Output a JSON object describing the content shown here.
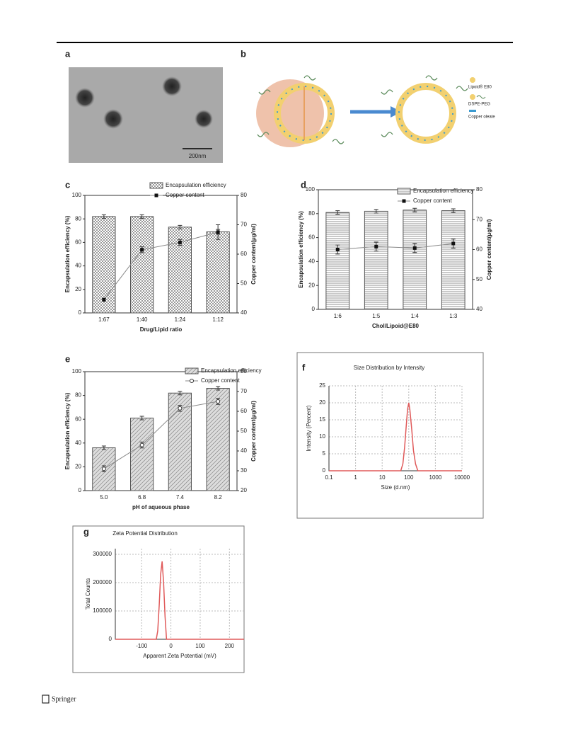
{
  "footer": "Springer",
  "panel_a": {
    "label": "a",
    "scale_bar": "200nm"
  },
  "panel_b": {
    "label": "b",
    "legend": [
      "Lipoid® E80",
      "DSPE-PEG",
      "Copper oleate"
    ]
  },
  "chart_data": [
    {
      "type": "bar",
      "panel": "c",
      "categories": [
        "1:67",
        "1:40",
        "1:24",
        "1:12"
      ],
      "xlabel": "Drug/Lipid ratio",
      "ylabel": "Encapsulation efficiency (%)",
      "y2label": "Copper content(μg/ml)",
      "ylim": [
        0,
        100
      ],
      "yticks": [
        0,
        20,
        40,
        60,
        80,
        100
      ],
      "y2lim": [
        40,
        80
      ],
      "y2ticks": [
        40,
        50,
        60,
        70,
        80
      ],
      "pattern": "checker",
      "marker": "filled-square",
      "series": [
        {
          "name": "Encapsulation efficiency",
          "color": "#555555",
          "values": [
            82,
            82,
            73,
            69
          ],
          "errors": [
            1.5,
            1.5,
            1.5,
            2
          ]
        },
        {
          "name": "Copper content",
          "color": "#888888",
          "axis": "y2",
          "values": [
            44.5,
            61.5,
            64,
            67.5
          ],
          "errors": [
            0.5,
            1,
            1,
            2.5
          ]
        }
      ]
    },
    {
      "type": "bar",
      "panel": "d",
      "categories": [
        "1:6",
        "1:5",
        "1:4",
        "1:3"
      ],
      "xlabel": "Chol/Lipoid@E80",
      "ylabel": "Encapsulation efficiency (%)",
      "y2label": "Copper content(μg/ml)",
      "ylim": [
        0,
        100
      ],
      "yticks": [
        0,
        20,
        40,
        60,
        80,
        100
      ],
      "y2lim": [
        40,
        80
      ],
      "y2ticks": [
        40,
        50,
        60,
        70,
        80
      ],
      "pattern": "horizontal",
      "marker": "filled-square",
      "series": [
        {
          "name": "Encapsulation efficiency",
          "color": "#555555",
          "values": [
            81,
            82,
            83,
            82.5
          ],
          "errors": [
            1.5,
            1.5,
            1.5,
            1.5
          ]
        },
        {
          "name": "Copper content",
          "color": "#888888",
          "axis": "y2",
          "values": [
            60,
            61,
            60.5,
            62
          ],
          "errors": [
            1.5,
            1.5,
            1.5,
            1.5
          ]
        }
      ]
    },
    {
      "type": "bar",
      "panel": "e",
      "categories": [
        "5.0",
        "6.8",
        "7.4",
        "8.2"
      ],
      "xlabel": "pH of aqueous phase",
      "ylabel": "Encapsulation efficiency (%)",
      "y2label": "Copper content(μg/ml)",
      "ylim": [
        0,
        100
      ],
      "yticks": [
        0,
        20,
        40,
        60,
        80,
        100
      ],
      "y2lim": [
        20,
        80
      ],
      "y2ticks": [
        20,
        30,
        40,
        50,
        60,
        70,
        80
      ],
      "pattern": "diagonal",
      "marker": "open-circle",
      "series": [
        {
          "name": "Encapsulation efficiency",
          "color": "#555555",
          "values": [
            36,
            61,
            82,
            86
          ],
          "errors": [
            1.5,
            1.5,
            1.5,
            1.5
          ]
        },
        {
          "name": "Copper content",
          "color": "#888888",
          "axis": "y2",
          "values": [
            31,
            43,
            61.5,
            65
          ],
          "errors": [
            1.5,
            1.5,
            1.5,
            1.5
          ]
        }
      ]
    },
    {
      "type": "line",
      "panel": "f",
      "title": "Size Distribution by Intensity",
      "xlabel": "Size (d.nm)",
      "ylabel": "Intensity (Percent)",
      "xlog": true,
      "grid": true,
      "xlim": [
        0.1,
        10000
      ],
      "xticks": [
        0.1,
        1,
        10,
        100,
        1000,
        10000
      ],
      "ylim": [
        0,
        25
      ],
      "yticks": [
        0,
        5,
        10,
        15,
        20,
        25
      ],
      "series": [
        {
          "color": "#e05a5a",
          "x": [
            0.1,
            50,
            60,
            70,
            80,
            90,
            100,
            110,
            130,
            150,
            180,
            220,
            10000
          ],
          "values": [
            0,
            0,
            2,
            7,
            13,
            18,
            20,
            18,
            12,
            6,
            2,
            0,
            0
          ]
        }
      ]
    },
    {
      "type": "line",
      "panel": "g",
      "title": "Zeta Potential Distribution",
      "xlabel": "Apparent Zeta Potential (mV)",
      "ylabel": "Total Counts",
      "xlog": false,
      "grid": true,
      "xlim": [
        -190,
        250
      ],
      "xticks": [
        -100,
        0,
        100,
        200
      ],
      "ylim": [
        0,
        320000
      ],
      "yticks": [
        0,
        100000,
        200000,
        300000
      ],
      "series": [
        {
          "color": "#e05a5a",
          "x": [
            -190,
            -50,
            -45,
            -40,
            -35,
            -30,
            -25,
            -20,
            -15,
            250
          ],
          "values": [
            0,
            0,
            30000,
            120000,
            230000,
            275000,
            200000,
            80000,
            0,
            0
          ]
        }
      ]
    }
  ]
}
